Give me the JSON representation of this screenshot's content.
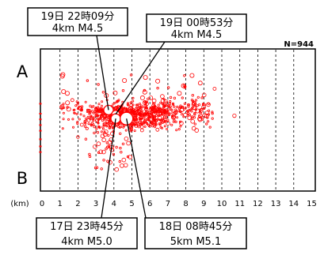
{
  "chart_data": {
    "type": "scatter",
    "x_unit": "(km)",
    "xlim": [
      0,
      15
    ],
    "x_ticks": [
      0,
      1,
      2,
      3,
      4,
      5,
      6,
      7,
      8,
      9,
      10,
      11,
      12,
      13,
      14,
      15
    ],
    "x_tick_labels": [
      "0",
      "1",
      "2",
      "3",
      "4",
      "5",
      "6",
      "7",
      "8",
      "9",
      "10",
      "11",
      "12",
      "13",
      "14",
      "15"
    ],
    "grid": "vertical dashed at each km",
    "count_label": "N=944",
    "end_labels": {
      "left_top": "A",
      "left_bottom": "B"
    },
    "colors": {
      "events": "#ff0000",
      "frame": "#000000"
    },
    "callouts": [
      {
        "line1": "19日 22時09分",
        "line2": "4km M4.5",
        "x_km": 3.7,
        "y_frac": 0.43
      },
      {
        "line1": "19日 00時53分",
        "line2": "4km M4.5",
        "x_km": 4.1,
        "y_frac": 0.46
      },
      {
        "line1": "17日 23時45分",
        "line2": "4km M5.0",
        "x_km": 4.1,
        "y_frac": 0.49
      },
      {
        "line1": "18日 08時45分",
        "line2": "5km M5.1",
        "x_km": 4.7,
        "y_frac": 0.49
      }
    ],
    "large_events": [
      {
        "x_km": 3.7,
        "y_frac": 0.43,
        "r": 6
      },
      {
        "x_km": 4.1,
        "y_frac": 0.46,
        "r": 5
      },
      {
        "x_km": 4.1,
        "y_frac": 0.49,
        "r": 6
      },
      {
        "x_km": 4.7,
        "y_frac": 0.49,
        "r": 8
      }
    ]
  }
}
